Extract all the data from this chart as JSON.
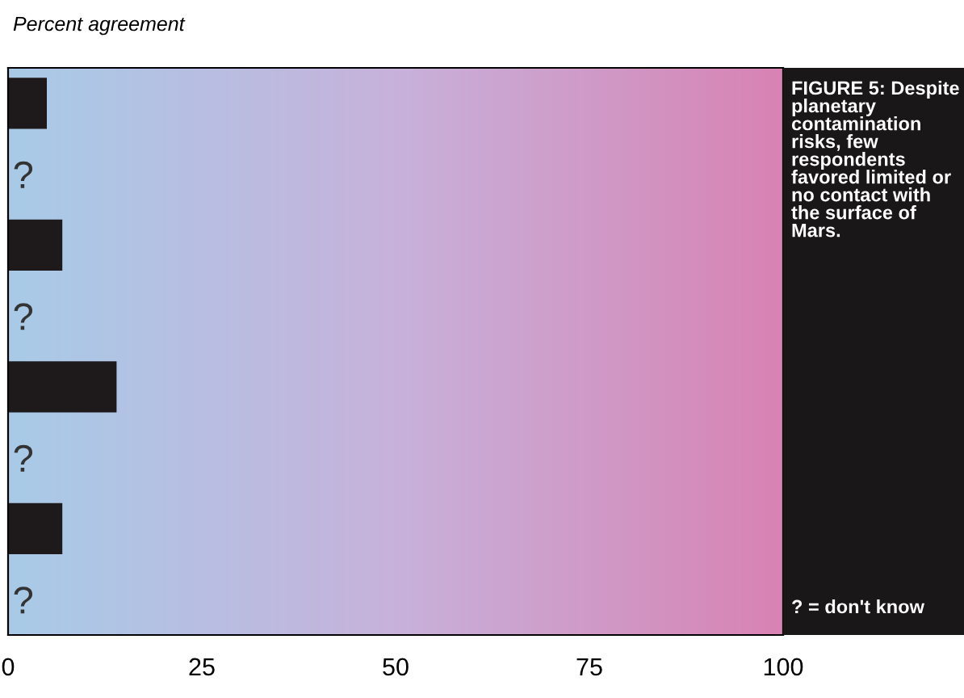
{
  "chart_data": {
    "type": "bar",
    "orientation": "horizontal",
    "title": "Percent agreement",
    "categories": [
      null,
      "?",
      null,
      "?",
      null,
      "?",
      null,
      "?"
    ],
    "values": [
      5,
      null,
      7,
      null,
      14,
      null,
      7,
      null
    ],
    "color": "#1e1a1c",
    "xlim": [
      0,
      100
    ],
    "xticks": [
      0,
      25,
      50,
      75,
      100
    ],
    "grid": false,
    "legend": false,
    "annotations": [
      "FIGURE 5: Despite planetary contamination risks, few respondents favored limited or no contact with the surface of Mars.",
      "? = don't know"
    ]
  }
}
